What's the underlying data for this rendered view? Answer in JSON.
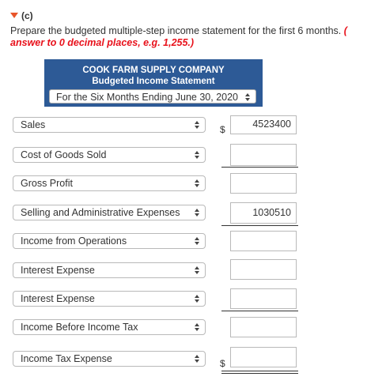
{
  "part_label": "(c)",
  "prompt": {
    "line1": "Prepare the budgeted multiple-step income statement for the first 6 months.",
    "line1_red": "(",
    "line2_red": "answer to 0 decimal places, e.g. 1,255.)"
  },
  "header": {
    "company": "COOK FARM SUPPLY COMPANY",
    "statement": "Budgeted Income Statement",
    "period": "For the Six Months Ending June 30, 2020"
  },
  "rows": [
    {
      "label": "Sales",
      "value": "4523400",
      "dollar": "$"
    },
    {
      "label": "Cost of Goods Sold",
      "value": ""
    },
    {
      "label": "Gross Profit",
      "value": ""
    },
    {
      "label": "Selling and Administrative Expenses",
      "value": "1030510"
    },
    {
      "label": "Income from Operations",
      "value": ""
    },
    {
      "label": "Interest Expense",
      "value": ""
    },
    {
      "label": "Interest Expense",
      "value": ""
    },
    {
      "label": "Income Before Income Tax",
      "value": ""
    },
    {
      "label": "Income Tax Expense",
      "value": "",
      "dollar": "$"
    }
  ],
  "colors": {
    "accent_red": "#e8111b",
    "banner_blue": "#2d5a96",
    "triangle": "#e8552a"
  }
}
